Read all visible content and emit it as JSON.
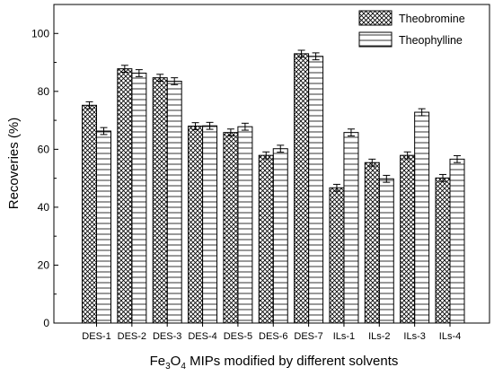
{
  "chart_data": {
    "type": "bar",
    "categories": [
      "DES-1",
      "DES-2",
      "DES-3",
      "DES-4",
      "DES-5",
      "DES-6",
      "DES-7",
      "ILs-1",
      "ILs-2",
      "ILs-3",
      "ILs-4"
    ],
    "series": [
      {
        "name": "Theobromine",
        "pattern": "crosshatch",
        "values": [
          75.2,
          87.8,
          84.7,
          68.0,
          65.8,
          57.9,
          93.0,
          46.7,
          55.4,
          57.9,
          50.1
        ],
        "errors": [
          1.2,
          1.2,
          1.2,
          1.2,
          1.2,
          1.2,
          1.2,
          1.2,
          1.2,
          1.2,
          1.2
        ]
      },
      {
        "name": "Theophylline",
        "pattern": "horizontal-lines",
        "values": [
          66.3,
          86.3,
          83.5,
          68.1,
          67.8,
          60.2,
          92.1,
          65.8,
          49.8,
          72.8,
          56.6
        ],
        "errors": [
          1.2,
          1.2,
          1.2,
          1.2,
          1.2,
          1.2,
          1.2,
          1.2,
          1.2,
          1.2,
          1.2
        ]
      }
    ],
    "yticks": [
      0,
      20,
      40,
      60,
      80,
      100
    ],
    "ylim": [
      0,
      110
    ],
    "ylabel": "Recoveries (%)",
    "xlabel": {
      "part1": "Fe",
      "sub1": "3",
      "part2": "O",
      "sub2": "4",
      "part3": " MIPs modified by different solvents"
    },
    "legend_position": "top-right",
    "grid": false
  }
}
